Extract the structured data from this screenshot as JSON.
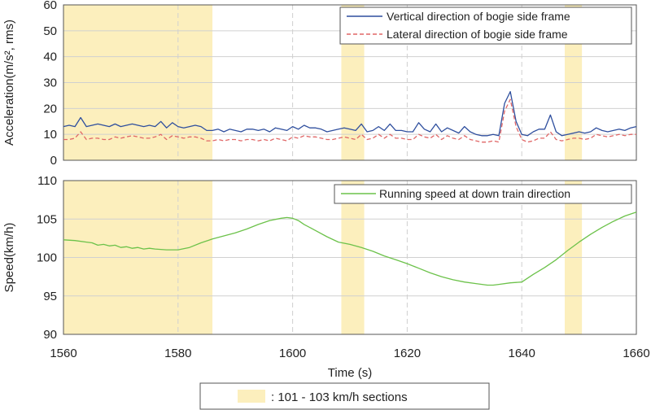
{
  "chart_data": [
    {
      "type": "line",
      "panel": "top",
      "ylabel": "Acceleration(m/s², rms)",
      "ylim": [
        0,
        60
      ],
      "yticks": [
        0,
        10,
        20,
        30,
        40,
        50,
        60
      ],
      "xlim": [
        1560,
        1660
      ],
      "xticks": [
        1560,
        1580,
        1600,
        1620,
        1640,
        1660
      ],
      "grid": true,
      "legend_position": "top-right",
      "series": [
        {
          "name": "Vertical direction of bogie side frame",
          "color": "#2f4f9e",
          "style": "solid",
          "x": [
            1560,
            1561,
            1562,
            1563,
            1564,
            1565,
            1566,
            1567,
            1568,
            1569,
            1570,
            1571,
            1572,
            1573,
            1574,
            1575,
            1576,
            1577,
            1578,
            1579,
            1580,
            1581,
            1582,
            1583,
            1584,
            1585,
            1586,
            1587,
            1588,
            1589,
            1590,
            1591,
            1592,
            1593,
            1594,
            1595,
            1596,
            1597,
            1598,
            1599,
            1600,
            1601,
            1602,
            1603,
            1604,
            1605,
            1606,
            1607,
            1608,
            1609,
            1610,
            1611,
            1612,
            1613,
            1614,
            1615,
            1616,
            1617,
            1618,
            1619,
            1620,
            1621,
            1622,
            1623,
            1624,
            1625,
            1626,
            1627,
            1628,
            1629,
            1630,
            1631,
            1632,
            1633,
            1634,
            1635,
            1636,
            1637,
            1638,
            1639,
            1640,
            1641,
            1642,
            1643,
            1644,
            1645,
            1646,
            1647,
            1648,
            1649,
            1650,
            1651,
            1652,
            1653,
            1654,
            1655,
            1656,
            1657,
            1658,
            1659,
            1660
          ],
          "y": [
            13,
            13.5,
            13,
            16.5,
            13,
            13.5,
            14,
            13.5,
            13,
            14,
            13,
            13.5,
            14,
            13.5,
            13,
            13.5,
            13,
            15,
            12.5,
            14.5,
            13,
            12.5,
            13,
            13.5,
            13,
            11.5,
            11.5,
            12,
            11,
            12,
            11.5,
            11,
            12,
            12,
            11.5,
            12,
            11,
            12.5,
            12,
            11.5,
            13,
            12,
            13.5,
            12.5,
            12.5,
            12,
            11,
            11.5,
            12,
            12.5,
            12,
            11.5,
            14,
            11,
            11.5,
            13,
            11.5,
            14,
            11.5,
            11.5,
            11,
            11,
            14.5,
            12,
            11,
            14,
            11,
            12.5,
            11.5,
            10.5,
            13,
            11,
            10,
            9.5,
            9.5,
            10,
            9.5,
            22,
            26.5,
            15,
            10,
            9.5,
            11,
            12,
            12,
            17.5,
            11,
            9.5,
            10,
            10.5,
            11,
            10.5,
            11,
            12.5,
            11.5,
            11,
            11.5,
            12,
            11.5,
            12.5,
            13
          ]
        },
        {
          "name": "Lateral direction of bogie side frame",
          "color": "#e06666",
          "style": "dashed",
          "x": [
            1560,
            1561,
            1562,
            1563,
            1564,
            1565,
            1566,
            1567,
            1568,
            1569,
            1570,
            1571,
            1572,
            1573,
            1574,
            1575,
            1576,
            1577,
            1578,
            1579,
            1580,
            1581,
            1582,
            1583,
            1584,
            1585,
            1586,
            1587,
            1588,
            1589,
            1590,
            1591,
            1592,
            1593,
            1594,
            1595,
            1596,
            1597,
            1598,
            1599,
            1600,
            1601,
            1602,
            1603,
            1604,
            1605,
            1606,
            1607,
            1608,
            1609,
            1610,
            1611,
            1612,
            1613,
            1614,
            1615,
            1616,
            1617,
            1618,
            1619,
            1620,
            1621,
            1622,
            1623,
            1624,
            1625,
            1626,
            1627,
            1628,
            1629,
            1630,
            1631,
            1632,
            1633,
            1634,
            1635,
            1636,
            1637,
            1638,
            1639,
            1640,
            1641,
            1642,
            1643,
            1644,
            1645,
            1646,
            1647,
            1648,
            1649,
            1650,
            1651,
            1652,
            1653,
            1654,
            1655,
            1656,
            1657,
            1658,
            1659,
            1660
          ],
          "y": [
            8,
            8,
            8.5,
            11,
            8,
            8.5,
            8.5,
            8,
            8,
            9,
            8.5,
            9,
            9.5,
            9,
            8.5,
            8.5,
            9,
            10,
            8,
            9.5,
            9,
            8.5,
            9,
            9,
            8.5,
            7.5,
            7.5,
            8,
            7.5,
            8,
            8,
            7.5,
            8,
            8,
            7.5,
            8,
            7.5,
            8.5,
            8,
            7.5,
            9,
            8.5,
            9.5,
            9,
            9,
            8.5,
            8,
            8,
            8.5,
            9,
            8.5,
            8,
            10,
            8,
            8.5,
            10,
            8.5,
            10,
            8.5,
            8.5,
            8,
            8,
            10,
            9,
            8.5,
            10,
            8,
            9.5,
            8.5,
            8,
            9.5,
            8,
            7.5,
            7,
            7,
            7.5,
            7,
            19,
            23.5,
            13,
            8,
            7,
            7.5,
            8.5,
            8.5,
            11,
            8,
            7.5,
            8,
            8.5,
            8.5,
            8,
            8.5,
            10,
            9.5,
            9,
            9.5,
            10,
            9.5,
            10,
            10
          ]
        }
      ],
      "highlight_sections": [
        [
          1560,
          1586
        ],
        [
          1608.5,
          1612.5
        ],
        [
          1647.5,
          1650.5
        ]
      ]
    },
    {
      "type": "line",
      "panel": "bottom",
      "ylabel": "Speed(km/h)",
      "xlabel": "Time (s)",
      "ylim": [
        90,
        110
      ],
      "yticks": [
        90,
        95,
        100,
        105,
        110
      ],
      "xlim": [
        1560,
        1660
      ],
      "xticks": [
        1560,
        1580,
        1600,
        1620,
        1640,
        1660
      ],
      "grid": true,
      "legend_position": "top-right",
      "series": [
        {
          "name": "Running speed at down train direction",
          "color": "#6cc24a",
          "style": "solid",
          "x": [
            1560,
            1562,
            1564,
            1565,
            1566,
            1567,
            1568,
            1569,
            1570,
            1571,
            1572,
            1573,
            1574,
            1575,
            1576,
            1578,
            1580,
            1582,
            1584,
            1586,
            1588,
            1590,
            1592,
            1594,
            1596,
            1598,
            1599,
            1600,
            1601,
            1602,
            1604,
            1606,
            1608,
            1610,
            1612,
            1614,
            1616,
            1618,
            1620,
            1622,
            1624,
            1626,
            1628,
            1630,
            1632,
            1634,
            1635,
            1636,
            1638,
            1640,
            1642,
            1644,
            1646,
            1648,
            1650,
            1652,
            1654,
            1656,
            1658,
            1660
          ],
          "y": [
            102.3,
            102.2,
            102.0,
            101.9,
            101.6,
            101.7,
            101.5,
            101.6,
            101.3,
            101.4,
            101.2,
            101.3,
            101.1,
            101.2,
            101.1,
            101.0,
            101.0,
            101.3,
            101.9,
            102.4,
            102.8,
            103.2,
            103.7,
            104.3,
            104.8,
            105.1,
            105.2,
            105.1,
            104.8,
            104.3,
            103.5,
            102.7,
            102.0,
            101.7,
            101.3,
            100.8,
            100.2,
            99.7,
            99.2,
            98.6,
            98.0,
            97.5,
            97.1,
            96.8,
            96.6,
            96.4,
            96.4,
            96.5,
            96.7,
            96.8,
            97.8,
            98.7,
            99.7,
            100.9,
            102.0,
            103.0,
            103.9,
            104.7,
            105.4,
            105.9
          ]
        }
      ],
      "highlight_sections": [
        [
          1560,
          1586
        ],
        [
          1608.5,
          1612.5
        ],
        [
          1647.5,
          1650.5
        ]
      ]
    }
  ],
  "bottom_legend": {
    "label": ": 101 - 103 km/h sections",
    "color": "#fcefbd"
  },
  "colors": {
    "grid": "#d0d0d0",
    "axis": "#555555",
    "highlight": "#fcefbd"
  }
}
